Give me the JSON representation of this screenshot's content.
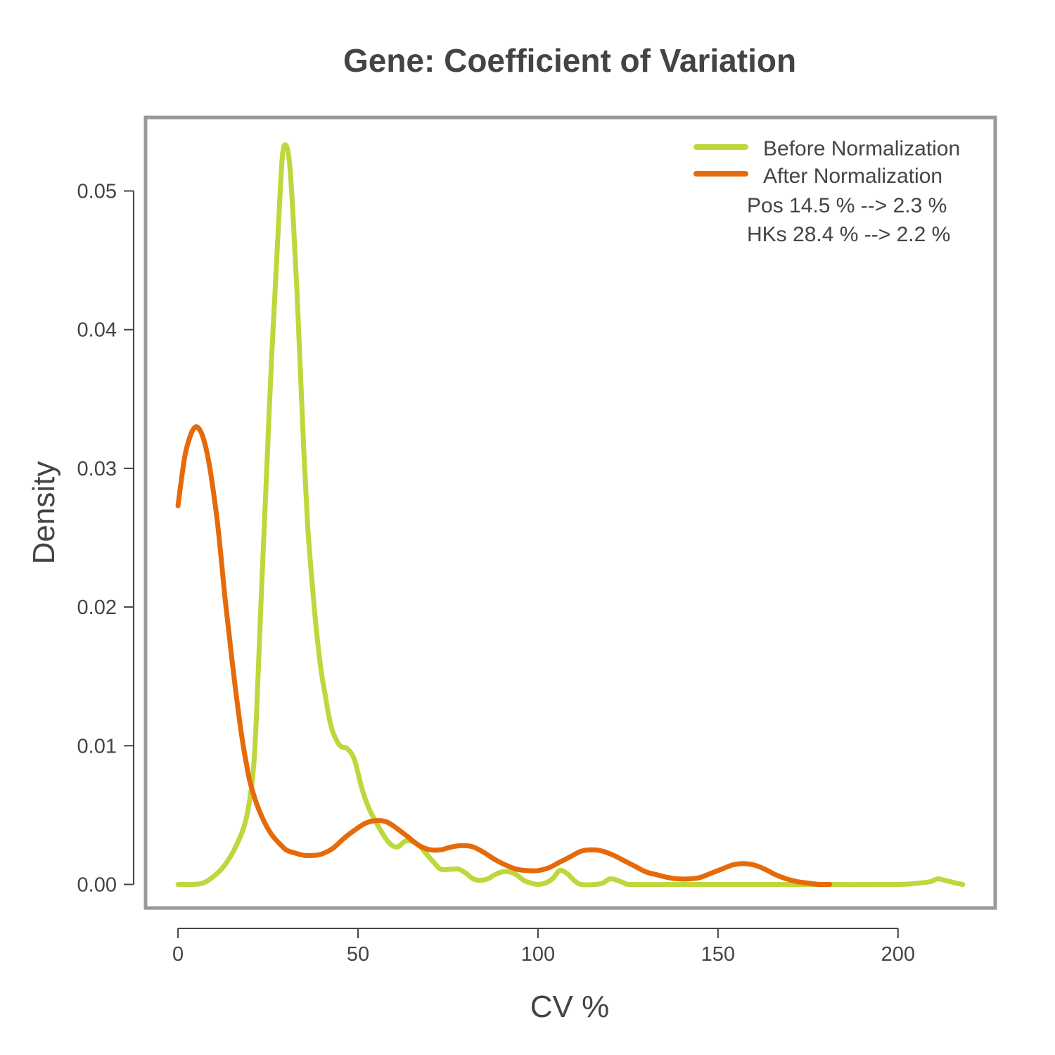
{
  "chart_data": {
    "type": "line",
    "title": "Gene: Coefficient of Variation",
    "xlabel": "CV %",
    "ylabel": "Density",
    "xlim": [
      -9,
      227
    ],
    "ylim": [
      -0.0017,
      0.0553
    ],
    "xticks": [
      0,
      50,
      100,
      150,
      200
    ],
    "yticks": [
      0.0,
      0.01,
      0.02,
      0.03,
      0.04,
      0.05
    ],
    "xtick_labels": [
      "0",
      "50",
      "100",
      "150",
      "200"
    ],
    "ytick_labels": [
      "0.00",
      "0.01",
      "0.02",
      "0.03",
      "0.04",
      "0.05"
    ],
    "grid": false,
    "legend_position": "top-right",
    "annotations": [
      "Pos 14.5 % --> 2.3 %",
      "HKs 28.4 % --> 2.2 %"
    ],
    "series": [
      {
        "name": "Before Normalization",
        "color": "#BED73C",
        "points": [
          [
            0,
            0
          ],
          [
            4,
            0
          ],
          [
            7,
            0.0001
          ],
          [
            10,
            0.0006
          ],
          [
            13,
            0.0014
          ],
          [
            16,
            0.0027
          ],
          [
            19,
            0.0048
          ],
          [
            21,
            0.0085
          ],
          [
            22,
            0.0135
          ],
          [
            23,
            0.02
          ],
          [
            24,
            0.026
          ],
          [
            25,
            0.032
          ],
          [
            26,
            0.038
          ],
          [
            27,
            0.043
          ],
          [
            28,
            0.048
          ],
          [
            29,
            0.0525
          ],
          [
            30,
            0.0533
          ],
          [
            31,
            0.052
          ],
          [
            32,
            0.048
          ],
          [
            33,
            0.043
          ],
          [
            34,
            0.037
          ],
          [
            35,
            0.031
          ],
          [
            36,
            0.026
          ],
          [
            37,
            0.0225
          ],
          [
            38,
            0.0195
          ],
          [
            39,
            0.017
          ],
          [
            40,
            0.015
          ],
          [
            41,
            0.0135
          ],
          [
            42,
            0.012
          ],
          [
            43,
            0.011
          ],
          [
            45,
            0.01
          ],
          [
            47,
            0.0098
          ],
          [
            49,
            0.009
          ],
          [
            51,
            0.007
          ],
          [
            53,
            0.0055
          ],
          [
            55,
            0.0045
          ],
          [
            57,
            0.0036
          ],
          [
            59,
            0.0029
          ],
          [
            61,
            0.0027
          ],
          [
            63,
            0.0031
          ],
          [
            65,
            0.0031
          ],
          [
            67,
            0.0028
          ],
          [
            69,
            0.0022
          ],
          [
            71,
            0.0016
          ],
          [
            73,
            0.0011
          ],
          [
            76,
            0.0011
          ],
          [
            78,
            0.0011
          ],
          [
            80,
            0.0008
          ],
          [
            82,
            0.0004
          ],
          [
            84,
            0.0003
          ],
          [
            86,
            0.0004
          ],
          [
            88,
            0.0007
          ],
          [
            90,
            0.0009
          ],
          [
            92,
            0.0009
          ],
          [
            94,
            0.0007
          ],
          [
            96,
            0.0003
          ],
          [
            98,
            0.0001
          ],
          [
            100,
            0
          ],
          [
            102,
            0.0001
          ],
          [
            104,
            0.0004
          ],
          [
            106,
            0.001
          ],
          [
            108,
            0.0008
          ],
          [
            110,
            0.0003
          ],
          [
            112,
            0
          ],
          [
            116,
            0
          ],
          [
            118,
            0.0001
          ],
          [
            120,
            0.0004
          ],
          [
            122,
            0.0003
          ],
          [
            124,
            0.0001
          ],
          [
            126,
            0
          ],
          [
            140,
            0
          ],
          [
            160,
            0
          ],
          [
            180,
            0
          ],
          [
            200,
            0
          ],
          [
            206,
            0.0001
          ],
          [
            209,
            0.0002
          ],
          [
            211,
            0.0004
          ],
          [
            213,
            0.0003
          ],
          [
            216,
            0.0001
          ],
          [
            218,
            0
          ]
        ]
      },
      {
        "name": "After Normalization",
        "color": "#E66A0A",
        "points": [
          [
            0,
            0.0273
          ],
          [
            1,
            0.0293
          ],
          [
            2,
            0.031
          ],
          [
            3,
            0.032
          ],
          [
            4,
            0.0327
          ],
          [
            5,
            0.033
          ],
          [
            6,
            0.0328
          ],
          [
            7,
            0.0322
          ],
          [
            8,
            0.0312
          ],
          [
            9,
            0.0298
          ],
          [
            10,
            0.028
          ],
          [
            11,
            0.026
          ],
          [
            12,
            0.0235
          ],
          [
            13,
            0.0208
          ],
          [
            14,
            0.0185
          ],
          [
            15,
            0.0162
          ],
          [
            16,
            0.014
          ],
          [
            17,
            0.012
          ],
          [
            18,
            0.0102
          ],
          [
            19,
            0.0087
          ],
          [
            20,
            0.0074
          ],
          [
            22,
            0.0057
          ],
          [
            24,
            0.0045
          ],
          [
            26,
            0.0036
          ],
          [
            28,
            0.003
          ],
          [
            30,
            0.0025
          ],
          [
            32,
            0.0023
          ],
          [
            35,
            0.0021
          ],
          [
            38,
            0.0021
          ],
          [
            40,
            0.0022
          ],
          [
            43,
            0.0026
          ],
          [
            46,
            0.0033
          ],
          [
            49,
            0.0039
          ],
          [
            52,
            0.0044
          ],
          [
            55,
            0.0046
          ],
          [
            58,
            0.0045
          ],
          [
            61,
            0.004
          ],
          [
            64,
            0.0034
          ],
          [
            67,
            0.0028
          ],
          [
            70,
            0.0025
          ],
          [
            73,
            0.0025
          ],
          [
            76,
            0.0027
          ],
          [
            79,
            0.0028
          ],
          [
            82,
            0.0027
          ],
          [
            85,
            0.0023
          ],
          [
            88,
            0.0018
          ],
          [
            91,
            0.0014
          ],
          [
            94,
            0.0011
          ],
          [
            97,
            0.001
          ],
          [
            100,
            0.001
          ],
          [
            103,
            0.0012
          ],
          [
            106,
            0.0016
          ],
          [
            109,
            0.002
          ],
          [
            112,
            0.0024
          ],
          [
            115,
            0.0025
          ],
          [
            118,
            0.0024
          ],
          [
            121,
            0.0021
          ],
          [
            124,
            0.0017
          ],
          [
            127,
            0.0013
          ],
          [
            130,
            0.0009
          ],
          [
            133,
            0.0007
          ],
          [
            136,
            0.0005
          ],
          [
            139,
            0.0004
          ],
          [
            142,
            0.0004
          ],
          [
            145,
            0.0005
          ],
          [
            148,
            0.0008
          ],
          [
            151,
            0.0011
          ],
          [
            154,
            0.0014
          ],
          [
            157,
            0.0015
          ],
          [
            160,
            0.0014
          ],
          [
            163,
            0.0011
          ],
          [
            166,
            0.0007
          ],
          [
            169,
            0.0004
          ],
          [
            172,
            0.0002
          ],
          [
            175,
            0.0001
          ],
          [
            178,
            0
          ],
          [
            181,
            0
          ]
        ]
      }
    ]
  }
}
